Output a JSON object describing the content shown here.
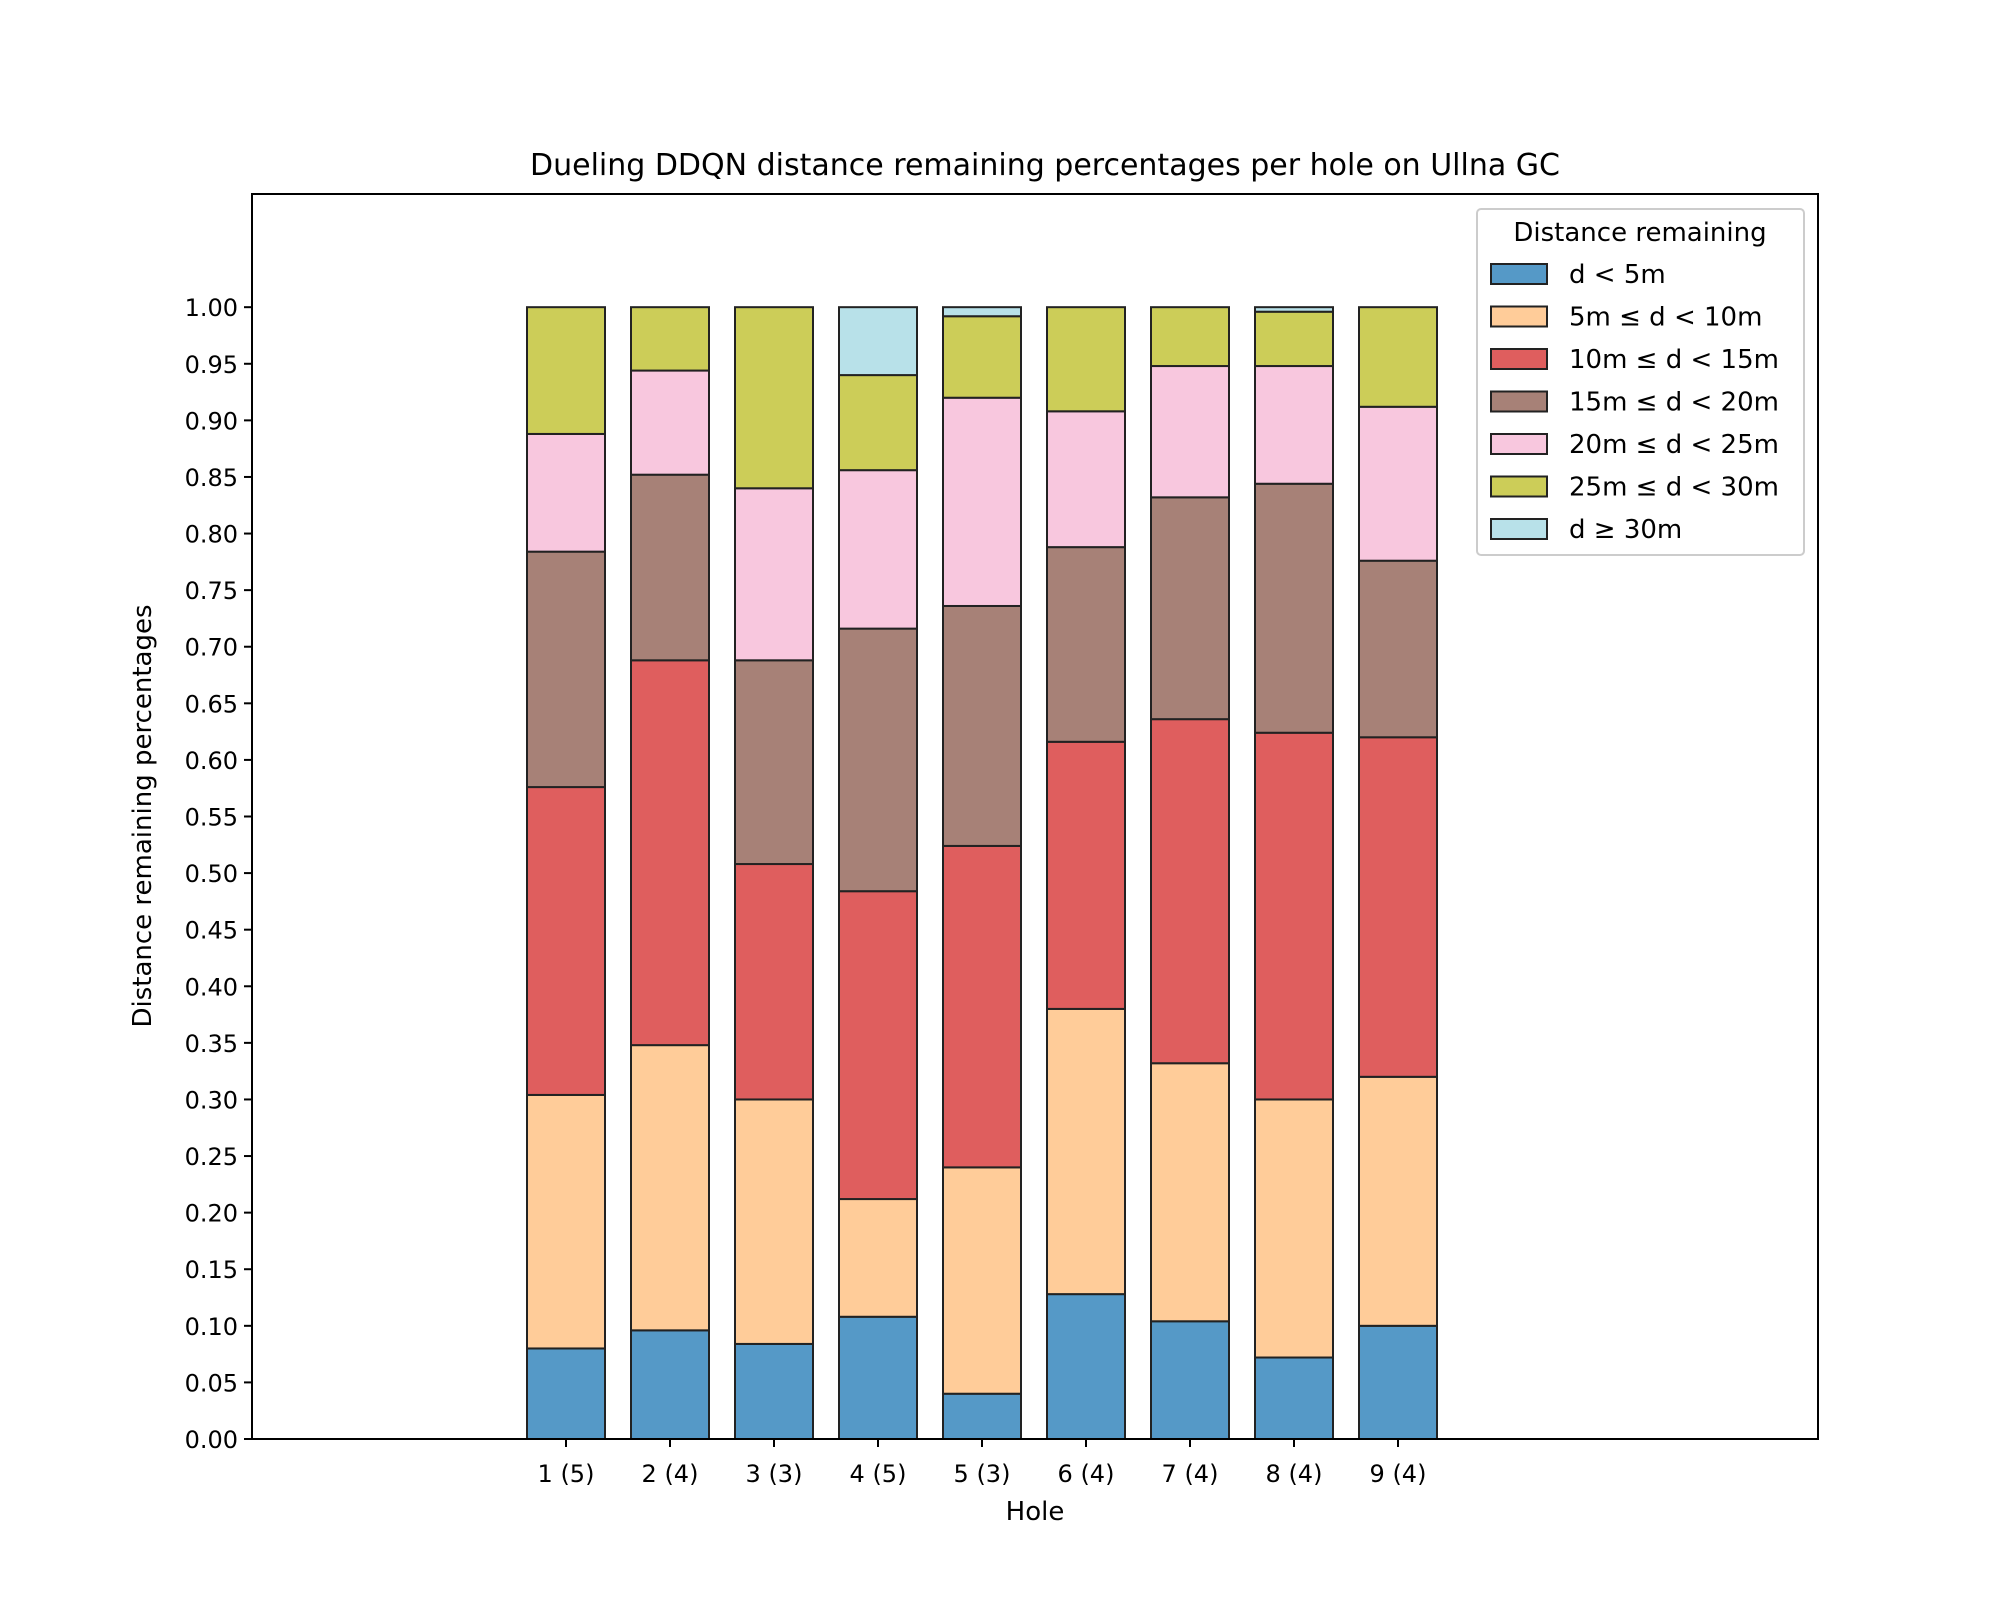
{
  "chart_data": {
    "type": "bar",
    "stacked": true,
    "title": "Dueling DDQN distance remaining percentages per hole on Ullna GC",
    "xlabel": "Hole",
    "ylabel": "Distance remaining percentages",
    "categories": [
      "1 (5)",
      "2 (4)",
      "3 (3)",
      "4 (5)",
      "5 (3)",
      "6 (4)",
      "7 (4)",
      "8 (4)",
      "9 (4)"
    ],
    "ylim": [
      0,
      1.1
    ],
    "yticks": [
      "0.00",
      "0.05",
      "0.10",
      "0.15",
      "0.20",
      "0.25",
      "0.30",
      "0.35",
      "0.40",
      "0.45",
      "0.50",
      "0.55",
      "0.60",
      "0.65",
      "0.70",
      "0.75",
      "0.80",
      "0.85",
      "0.90",
      "0.95",
      "1.00"
    ],
    "grid": false,
    "legend": {
      "title": "Distance remaining",
      "placement": "top-right"
    },
    "series": [
      {
        "name": "d < 5m",
        "color": "#5599c7",
        "values": [
          0.08,
          0.096,
          0.084,
          0.108,
          0.04,
          0.128,
          0.104,
          0.072,
          0.1
        ]
      },
      {
        "name": "5m ≤ d < 10m",
        "color": "#ffcc99",
        "values": [
          0.224,
          0.252,
          0.216,
          0.104,
          0.2,
          0.252,
          0.228,
          0.228,
          0.22
        ]
      },
      {
        "name": "10m ≤ d < 15m",
        "color": "#df5e5e",
        "values": [
          0.272,
          0.34,
          0.208,
          0.272,
          0.284,
          0.236,
          0.304,
          0.324,
          0.3
        ]
      },
      {
        "name": "15m ≤ d < 20m",
        "color": "#a78177",
        "values": [
          0.208,
          0.164,
          0.18,
          0.232,
          0.212,
          0.172,
          0.196,
          0.22,
          0.156
        ]
      },
      {
        "name": "20m ≤ d < 25m",
        "color": "#f8c7de",
        "values": [
          0.104,
          0.092,
          0.152,
          0.14,
          0.184,
          0.12,
          0.116,
          0.104,
          0.136
        ]
      },
      {
        "name": "25m ≤ d < 30m",
        "color": "#cccd58",
        "values": [
          0.112,
          0.056,
          0.16,
          0.084,
          0.072,
          0.092,
          0.052,
          0.048,
          0.088
        ]
      },
      {
        "name": "d ≥ 30m",
        "color": "#b8e1e9",
        "values": [
          0.0,
          0.0,
          0.0,
          0.06,
          0.008,
          0.0,
          0.0,
          0.004,
          0.0
        ]
      }
    ]
  }
}
